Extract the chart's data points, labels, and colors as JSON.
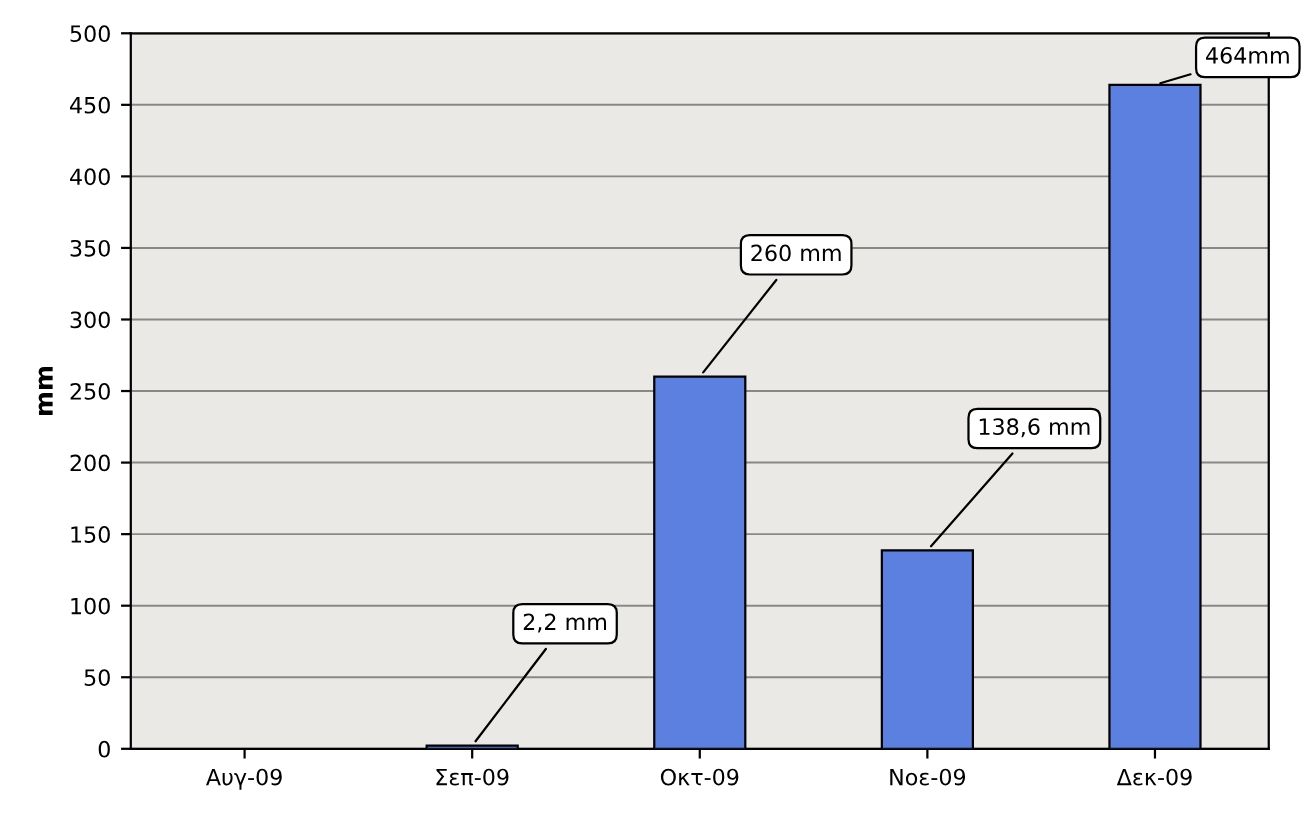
{
  "chart_data": {
    "type": "bar",
    "ylabel": "mm",
    "categories": [
      "Αυγ-09",
      "Σεπ-09",
      "Οκτ-09",
      "Νοε-09",
      "Δεκ-09"
    ],
    "values": [
      null,
      2.2,
      260,
      138.6,
      464
    ],
    "value_labels": [
      null,
      "2,2 mm",
      "260 mm",
      "138,6 mm",
      "464mm"
    ],
    "color": "#5b80e0",
    "ylim": [
      0,
      500
    ],
    "yticks": [
      0,
      50,
      100,
      150,
      200,
      250,
      300,
      350,
      400,
      450,
      500
    ],
    "grid": "y",
    "legend": false
  }
}
